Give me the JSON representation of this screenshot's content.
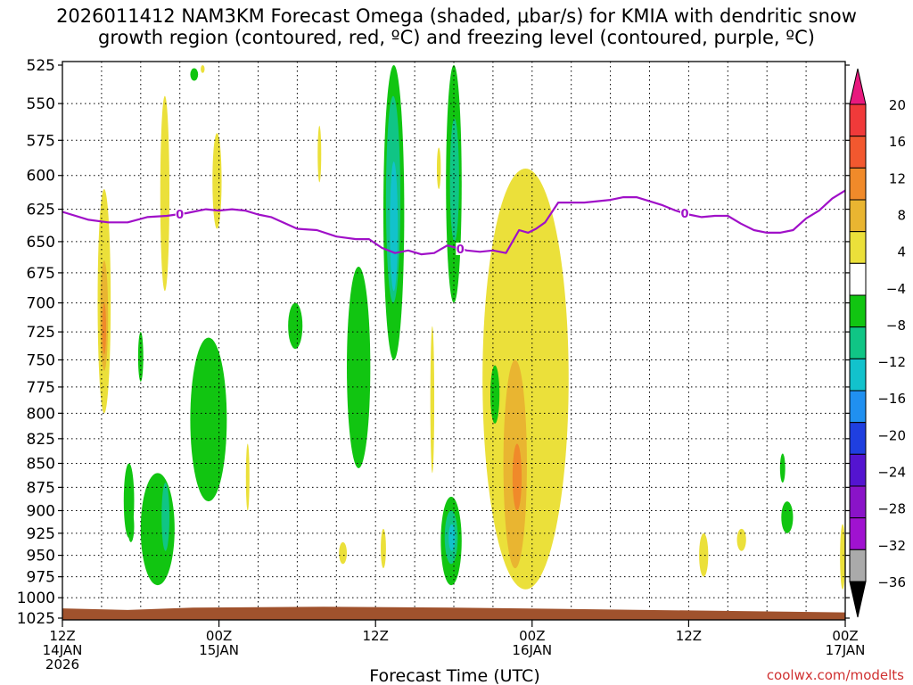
{
  "title_line1": "2026011412 NAM3KM Forecast Omega (shaded, μbar/s) for KMIA with dendritic snow",
  "title_line2": "growth region (contoured, red, ºC) and freezing level (contoured, purple, ºC)",
  "credit": "coolwx.com/modelts",
  "chart_data": {
    "type": "heatmap",
    "xlabel": "Forecast Time (UTC)",
    "ylabel": "",
    "x_range_hours": [
      0,
      60
    ],
    "y_range_hpa": [
      525,
      1025
    ],
    "y_ticks": [
      525,
      550,
      575,
      600,
      625,
      650,
      675,
      700,
      725,
      750,
      775,
      800,
      825,
      850,
      875,
      900,
      925,
      950,
      975,
      1000,
      1025
    ],
    "x_ticks": [
      {
        "hour": 0,
        "line1": "12Z",
        "line2": "14JAN",
        "line3": "2026"
      },
      {
        "hour": 12,
        "line1": "00Z",
        "line2": "15JAN",
        "line3": ""
      },
      {
        "hour": 24,
        "line1": "12Z",
        "line2": "",
        "line3": ""
      },
      {
        "hour": 36,
        "line1": "00Z",
        "line2": "16JAN",
        "line3": ""
      },
      {
        "hour": 48,
        "line1": "12Z",
        "line2": "",
        "line3": ""
      },
      {
        "hour": 60,
        "line1": "00Z",
        "line2": "17JAN",
        "line3": ""
      }
    ],
    "grid": true,
    "colorbar": {
      "labels": [
        "20",
        "16",
        "12",
        "8",
        "4",
        "−4",
        "−8",
        "−12",
        "−16",
        "−20",
        "−24",
        "−28",
        "−32",
        "−36"
      ],
      "colors": [
        "#e8197e",
        "#f03a3a",
        "#f2582f",
        "#f08a2a",
        "#e9b531",
        "#ebe03a",
        "#ffffff",
        "#11c511",
        "#10c585",
        "#12c2cc",
        "#2090f0",
        "#1f3fe0",
        "#5414d0",
        "#8a13c8",
        "#a012d0",
        "#aaaaaa",
        "#000000"
      ]
    },
    "freezing_level": {
      "label": "0",
      "color": "#a010c8",
      "hours": [
        0,
        2,
        3.5,
        5,
        6.5,
        8,
        9.5,
        11,
        12,
        13,
        14,
        15,
        16,
        18,
        19.5,
        21,
        22.5,
        23.5,
        24.5,
        25.5,
        26.5,
        27.5,
        28.5,
        29.5,
        31,
        32,
        33,
        34,
        35,
        35.7,
        36.3,
        37,
        38,
        39,
        40,
        41,
        42,
        43,
        44,
        45,
        46,
        47,
        48,
        49,
        50,
        51,
        52,
        53,
        54,
        55,
        56,
        57,
        58,
        59,
        60
      ],
      "pressure_hpa": [
        627,
        633,
        635,
        635,
        631,
        630,
        628,
        625,
        626,
        625,
        626,
        629,
        631,
        640,
        641,
        646,
        648,
        648,
        655,
        659,
        657,
        660,
        659,
        653,
        657,
        658,
        657,
        659,
        641,
        643,
        640,
        635,
        620,
        620,
        620,
        619,
        618,
        616,
        616,
        619,
        622,
        626,
        629,
        631,
        630,
        630,
        636,
        641,
        643,
        643,
        641,
        632,
        626,
        617,
        611
      ]
    },
    "shaded_regions": [
      {
        "band": "4 to 8",
        "hour": [
          2.7,
          3.7
        ],
        "p": [
          610,
          800
        ]
      },
      {
        "band": "8 to 12",
        "hour": [
          2.9,
          3.5
        ],
        "p": [
          665,
          760
        ]
      },
      {
        "band": "12 to 16",
        "hour": [
          3.05,
          3.35
        ],
        "p": [
          700,
          745
        ]
      },
      {
        "band": "4 to 8",
        "hour": [
          7.5,
          8.2
        ],
        "p": [
          545,
          690
        ]
      },
      {
        "band": "4 to 8",
        "hour": [
          11.5,
          12.2
        ],
        "p": [
          570,
          640
        ]
      },
      {
        "band": "4 to 8",
        "hour": [
          10.6,
          10.9
        ],
        "p": [
          525,
          530
        ]
      },
      {
        "band": "4 to 8",
        "hour": [
          19.6,
          19.8
        ],
        "p": [
          565,
          605
        ]
      },
      {
        "band": "4 to 8",
        "hour": [
          14.1,
          14.3
        ],
        "p": [
          830,
          900
        ]
      },
      {
        "band": "4 to 8",
        "hour": [
          21.2,
          21.8
        ],
        "p": [
          935,
          960
        ]
      },
      {
        "band": "4 to 8",
        "hour": [
          24.4,
          24.8
        ],
        "p": [
          920,
          965
        ]
      },
      {
        "band": "4 to 8",
        "hour": [
          28.7,
          29.0
        ],
        "p": [
          580,
          610
        ]
      },
      {
        "band": "4 to 8",
        "hour": [
          28.2,
          28.5
        ],
        "p": [
          720,
          860
        ]
      },
      {
        "band": "4 to 8",
        "hour": [
          32.2,
          38.8
        ],
        "p": [
          595,
          990
        ]
      },
      {
        "band": "8 to 12",
        "hour": [
          33.8,
          35.6
        ],
        "p": [
          750,
          965
        ]
      },
      {
        "band": "12 to 16",
        "hour": [
          34.5,
          35.2
        ],
        "p": [
          830,
          900
        ]
      },
      {
        "band": "4 to 8",
        "hour": [
          48.8,
          49.5
        ],
        "p": [
          925,
          975
        ]
      },
      {
        "band": "4 to 8",
        "hour": [
          51.7,
          52.4
        ],
        "p": [
          920,
          945
        ]
      },
      {
        "band": "4 to 8",
        "hour": [
          59.6,
          60.0
        ],
        "p": [
          915,
          990
        ]
      },
      {
        "band": "-4 to -8",
        "hour": [
          4.7,
          5.5
        ],
        "p": [
          850,
          930
        ]
      },
      {
        "band": "-4 to -8",
        "hour": [
          5.0,
          5.5
        ],
        "p": [
          900,
          935
        ]
      },
      {
        "band": "-4 to -8",
        "hour": [
          5.8,
          6.2
        ],
        "p": [
          725,
          770
        ]
      },
      {
        "band": "-4 to -8",
        "hour": [
          6.0,
          8.6
        ],
        "p": [
          860,
          985
        ]
      },
      {
        "band": "-8 to -12",
        "hour": [
          7.6,
          8.2
        ],
        "p": [
          870,
          945
        ]
      },
      {
        "band": "-4 to -8",
        "hour": [
          9.8,
          10.4
        ],
        "p": [
          527,
          535
        ]
      },
      {
        "band": "-4 to -8",
        "hour": [
          9.8,
          12.6
        ],
        "p": [
          730,
          890
        ]
      },
      {
        "band": "-4 to -8",
        "hour": [
          17.3,
          18.4
        ],
        "p": [
          700,
          740
        ]
      },
      {
        "band": "-4 to -8",
        "hour": [
          21.8,
          23.6
        ],
        "p": [
          670,
          855
        ]
      },
      {
        "band": "-4 to -8",
        "hour": [
          24.6,
          26.2
        ],
        "p": [
          525,
          750
        ]
      },
      {
        "band": "-8 to -12",
        "hour": [
          24.8,
          25.9
        ],
        "p": [
          545,
          700
        ]
      },
      {
        "band": "-12 to -16",
        "hour": [
          25.1,
          25.7
        ],
        "p": [
          590,
          690
        ]
      },
      {
        "band": "-4 to -8",
        "hour": [
          29.4,
          30.6
        ],
        "p": [
          525,
          700
        ]
      },
      {
        "band": "-8 to -12",
        "hour": [
          29.7,
          30.4
        ],
        "p": [
          560,
          650
        ]
      },
      {
        "band": "-4 to -8",
        "hour": [
          29.0,
          30.6
        ],
        "p": [
          885,
          985
        ]
      },
      {
        "band": "-8 to -12",
        "hour": [
          29.3,
          30.3
        ],
        "p": [
          900,
          960
        ]
      },
      {
        "band": "-12 to -16",
        "hour": [
          29.6,
          30.1
        ],
        "p": [
          915,
          945
        ]
      },
      {
        "band": "-4 to -8",
        "hour": [
          32.8,
          33.5
        ],
        "p": [
          755,
          810
        ]
      },
      {
        "band": "-4 to -8",
        "hour": [
          55.0,
          55.4
        ],
        "p": [
          840,
          870
        ]
      },
      {
        "band": "-4 to -8",
        "hour": [
          55.1,
          56.0
        ],
        "p": [
          890,
          925
        ]
      }
    ],
    "terrain": {
      "color": "#a0522d",
      "top_hpa": [
        1013,
        1015,
        1012,
        1011,
        1012,
        1014,
        1016,
        1018
      ],
      "hours": [
        0,
        5,
        10,
        20,
        30,
        40,
        50,
        60
      ]
    }
  }
}
